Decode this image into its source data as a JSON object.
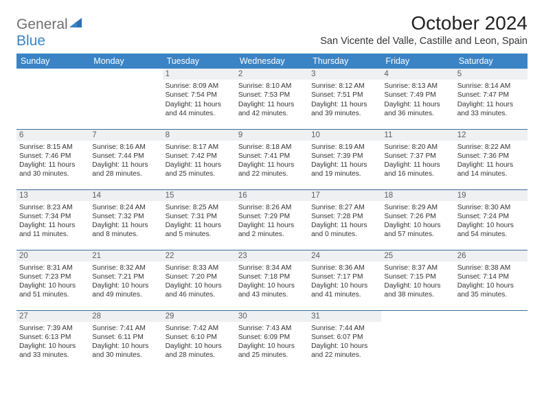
{
  "logo": {
    "part1": "General",
    "part2": "Blue"
  },
  "title": "October 2024",
  "location": "San Vicente del Valle, Castille and Leon, Spain",
  "colors": {
    "header_bg": "#3a83c5",
    "header_text": "#ffffff",
    "daynum_bg": "#eef0f2",
    "daynum_text": "#5a5d60",
    "row_border": "#3a6a9a",
    "logo_gray": "#6d6e71",
    "logo_blue": "#3a83c5"
  },
  "day_headers": [
    "Sunday",
    "Monday",
    "Tuesday",
    "Wednesday",
    "Thursday",
    "Friday",
    "Saturday"
  ],
  "weeks": [
    [
      null,
      null,
      {
        "n": "1",
        "sr": "Sunrise: 8:09 AM",
        "ss": "Sunset: 7:54 PM",
        "d1": "Daylight: 11 hours",
        "d2": "and 44 minutes."
      },
      {
        "n": "2",
        "sr": "Sunrise: 8:10 AM",
        "ss": "Sunset: 7:53 PM",
        "d1": "Daylight: 11 hours",
        "d2": "and 42 minutes."
      },
      {
        "n": "3",
        "sr": "Sunrise: 8:12 AM",
        "ss": "Sunset: 7:51 PM",
        "d1": "Daylight: 11 hours",
        "d2": "and 39 minutes."
      },
      {
        "n": "4",
        "sr": "Sunrise: 8:13 AM",
        "ss": "Sunset: 7:49 PM",
        "d1": "Daylight: 11 hours",
        "d2": "and 36 minutes."
      },
      {
        "n": "5",
        "sr": "Sunrise: 8:14 AM",
        "ss": "Sunset: 7:47 PM",
        "d1": "Daylight: 11 hours",
        "d2": "and 33 minutes."
      }
    ],
    [
      {
        "n": "6",
        "sr": "Sunrise: 8:15 AM",
        "ss": "Sunset: 7:46 PM",
        "d1": "Daylight: 11 hours",
        "d2": "and 30 minutes."
      },
      {
        "n": "7",
        "sr": "Sunrise: 8:16 AM",
        "ss": "Sunset: 7:44 PM",
        "d1": "Daylight: 11 hours",
        "d2": "and 28 minutes."
      },
      {
        "n": "8",
        "sr": "Sunrise: 8:17 AM",
        "ss": "Sunset: 7:42 PM",
        "d1": "Daylight: 11 hours",
        "d2": "and 25 minutes."
      },
      {
        "n": "9",
        "sr": "Sunrise: 8:18 AM",
        "ss": "Sunset: 7:41 PM",
        "d1": "Daylight: 11 hours",
        "d2": "and 22 minutes."
      },
      {
        "n": "10",
        "sr": "Sunrise: 8:19 AM",
        "ss": "Sunset: 7:39 PM",
        "d1": "Daylight: 11 hours",
        "d2": "and 19 minutes."
      },
      {
        "n": "11",
        "sr": "Sunrise: 8:20 AM",
        "ss": "Sunset: 7:37 PM",
        "d1": "Daylight: 11 hours",
        "d2": "and 16 minutes."
      },
      {
        "n": "12",
        "sr": "Sunrise: 8:22 AM",
        "ss": "Sunset: 7:36 PM",
        "d1": "Daylight: 11 hours",
        "d2": "and 14 minutes."
      }
    ],
    [
      {
        "n": "13",
        "sr": "Sunrise: 8:23 AM",
        "ss": "Sunset: 7:34 PM",
        "d1": "Daylight: 11 hours",
        "d2": "and 11 minutes."
      },
      {
        "n": "14",
        "sr": "Sunrise: 8:24 AM",
        "ss": "Sunset: 7:32 PM",
        "d1": "Daylight: 11 hours",
        "d2": "and 8 minutes."
      },
      {
        "n": "15",
        "sr": "Sunrise: 8:25 AM",
        "ss": "Sunset: 7:31 PM",
        "d1": "Daylight: 11 hours",
        "d2": "and 5 minutes."
      },
      {
        "n": "16",
        "sr": "Sunrise: 8:26 AM",
        "ss": "Sunset: 7:29 PM",
        "d1": "Daylight: 11 hours",
        "d2": "and 2 minutes."
      },
      {
        "n": "17",
        "sr": "Sunrise: 8:27 AM",
        "ss": "Sunset: 7:28 PM",
        "d1": "Daylight: 11 hours",
        "d2": "and 0 minutes."
      },
      {
        "n": "18",
        "sr": "Sunrise: 8:29 AM",
        "ss": "Sunset: 7:26 PM",
        "d1": "Daylight: 10 hours",
        "d2": "and 57 minutes."
      },
      {
        "n": "19",
        "sr": "Sunrise: 8:30 AM",
        "ss": "Sunset: 7:24 PM",
        "d1": "Daylight: 10 hours",
        "d2": "and 54 minutes."
      }
    ],
    [
      {
        "n": "20",
        "sr": "Sunrise: 8:31 AM",
        "ss": "Sunset: 7:23 PM",
        "d1": "Daylight: 10 hours",
        "d2": "and 51 minutes."
      },
      {
        "n": "21",
        "sr": "Sunrise: 8:32 AM",
        "ss": "Sunset: 7:21 PM",
        "d1": "Daylight: 10 hours",
        "d2": "and 49 minutes."
      },
      {
        "n": "22",
        "sr": "Sunrise: 8:33 AM",
        "ss": "Sunset: 7:20 PM",
        "d1": "Daylight: 10 hours",
        "d2": "and 46 minutes."
      },
      {
        "n": "23",
        "sr": "Sunrise: 8:34 AM",
        "ss": "Sunset: 7:18 PM",
        "d1": "Daylight: 10 hours",
        "d2": "and 43 minutes."
      },
      {
        "n": "24",
        "sr": "Sunrise: 8:36 AM",
        "ss": "Sunset: 7:17 PM",
        "d1": "Daylight: 10 hours",
        "d2": "and 41 minutes."
      },
      {
        "n": "25",
        "sr": "Sunrise: 8:37 AM",
        "ss": "Sunset: 7:15 PM",
        "d1": "Daylight: 10 hours",
        "d2": "and 38 minutes."
      },
      {
        "n": "26",
        "sr": "Sunrise: 8:38 AM",
        "ss": "Sunset: 7:14 PM",
        "d1": "Daylight: 10 hours",
        "d2": "and 35 minutes."
      }
    ],
    [
      {
        "n": "27",
        "sr": "Sunrise: 7:39 AM",
        "ss": "Sunset: 6:13 PM",
        "d1": "Daylight: 10 hours",
        "d2": "and 33 minutes."
      },
      {
        "n": "28",
        "sr": "Sunrise: 7:41 AM",
        "ss": "Sunset: 6:11 PM",
        "d1": "Daylight: 10 hours",
        "d2": "and 30 minutes."
      },
      {
        "n": "29",
        "sr": "Sunrise: 7:42 AM",
        "ss": "Sunset: 6:10 PM",
        "d1": "Daylight: 10 hours",
        "d2": "and 28 minutes."
      },
      {
        "n": "30",
        "sr": "Sunrise: 7:43 AM",
        "ss": "Sunset: 6:09 PM",
        "d1": "Daylight: 10 hours",
        "d2": "and 25 minutes."
      },
      {
        "n": "31",
        "sr": "Sunrise: 7:44 AM",
        "ss": "Sunset: 6:07 PM",
        "d1": "Daylight: 10 hours",
        "d2": "and 22 minutes."
      },
      null,
      null
    ]
  ]
}
